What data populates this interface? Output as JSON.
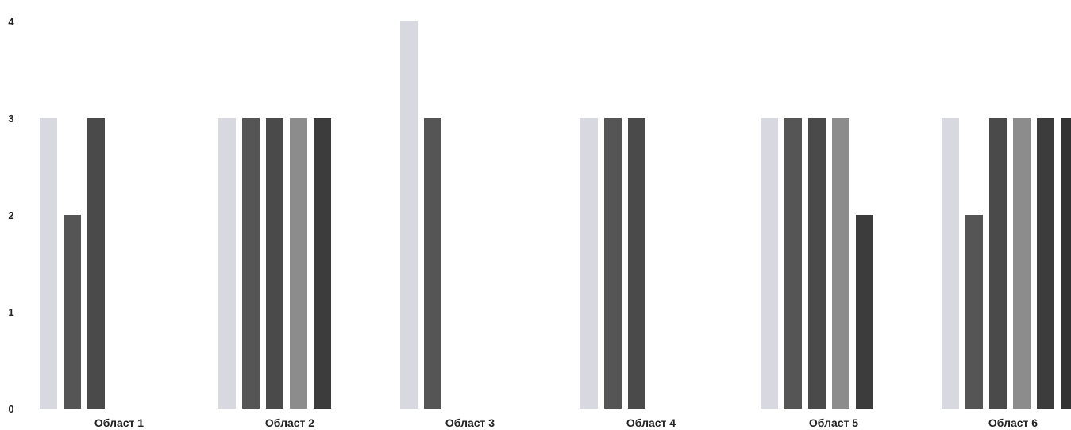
{
  "chart_data": {
    "type": "bar",
    "title": "",
    "xlabel": "",
    "ylabel": "",
    "ylim": [
      0,
      4
    ],
    "yticks": [
      "0",
      "1",
      "2",
      "3",
      "4"
    ],
    "grid": false,
    "legend": "none",
    "categories": [
      "Област 1",
      "Област 2",
      "Област 3",
      "Област 4",
      "Област 5",
      "Област 6"
    ],
    "groups": [
      {
        "category": "Област 1",
        "values": [
          3,
          2,
          3
        ]
      },
      {
        "category": "Област 2",
        "values": [
          3,
          3,
          3,
          3,
          3
        ]
      },
      {
        "category": "Област 3",
        "values": [
          4,
          3
        ]
      },
      {
        "category": "Област 4",
        "values": [
          3,
          3,
          3
        ]
      },
      {
        "category": "Област 5",
        "values": [
          3,
          3,
          3,
          3,
          2
        ]
      },
      {
        "category": "Област 6",
        "values": [
          3,
          2,
          3,
          3,
          3,
          3
        ]
      }
    ],
    "bar_colors": {
      "Област 1": [
        "#d8d8e0",
        "#555555",
        "#4a4a4a"
      ],
      "Област 2": [
        "#d8d8e0",
        "#555555",
        "#4a4a4a",
        "#8c8c8c",
        "#3c3c3c"
      ],
      "Област 3": [
        "#d8d8e0",
        "#555555"
      ],
      "Област 4": [
        "#d8d8e0",
        "#555555",
        "#4a4a4a"
      ],
      "Област 5": [
        "#d8d8e0",
        "#555555",
        "#4a4a4a",
        "#8c8c8c",
        "#3c3c3c"
      ],
      "Област 6": [
        "#d8d8e0",
        "#555555",
        "#4a4a4a",
        "#8c8c8c",
        "#3c3c3c",
        "#333333"
      ]
    }
  }
}
